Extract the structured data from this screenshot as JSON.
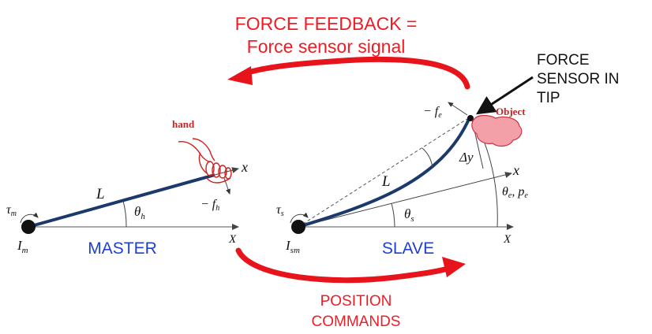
{
  "colors": {
    "feedback_text": "#ee1c24",
    "arrow_red": "#e8141c",
    "master_label": "#1f3fd0",
    "rod": "#1b3a6b",
    "hand": "#cc2222",
    "object_fill": "#f4a0a8",
    "object_stroke": "#cc3344",
    "axis": "#555555",
    "black": "#111111"
  },
  "top": {
    "line1": "FORCE FEEDBACK =",
    "line2": "Force sensor signal"
  },
  "bottom": {
    "line1": "POSITION",
    "line2": "COMMANDS"
  },
  "sensor": {
    "line1": "FORCE",
    "line2": "SENSOR IN",
    "line3": "TIP"
  },
  "master": {
    "label": "MASTER",
    "hand": "hand",
    "L": "L",
    "theta_main": "θ",
    "theta_sub": "h",
    "tau_main": "τ",
    "tau_sub": "m",
    "inertia_main": "I",
    "inertia_sub": "m",
    "x_axis": "x",
    "X_axis": "X",
    "force_prefix": "− f",
    "force_sub": "h"
  },
  "slave": {
    "label": "SLAVE",
    "object": "Object",
    "L": "L",
    "theta_main": "θ",
    "theta_sub": "s",
    "tau_main": "τ",
    "tau_sub": "s",
    "inertia_main": "I",
    "inertia_sub": "sm",
    "x_axis": "x",
    "X_axis": "X",
    "force_prefix": "− f",
    "force_sub": "e",
    "delta_y": "Δy",
    "theta_e_main": "θ",
    "theta_e_sub": "e",
    "p_e_main": ", p",
    "p_e_sub": "e"
  }
}
